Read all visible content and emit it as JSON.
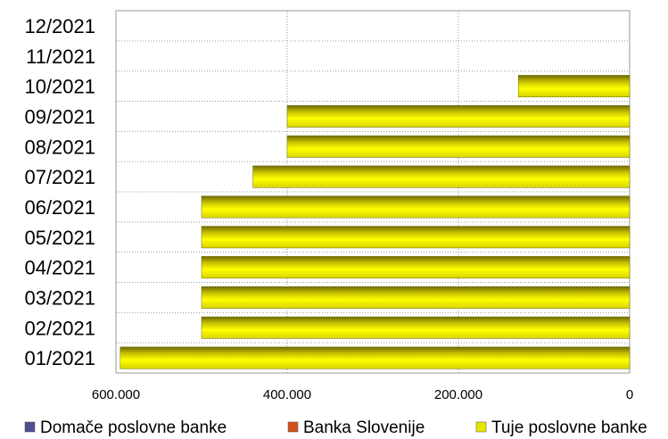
{
  "chart_data": {
    "type": "bar",
    "orientation": "horizontal",
    "x_axis_reversed": true,
    "categories": [
      "01/2021",
      "02/2021",
      "03/2021",
      "04/2021",
      "05/2021",
      "06/2021",
      "07/2021",
      "08/2021",
      "09/2021",
      "10/2021",
      "11/2021",
      "12/2021"
    ],
    "series": [
      {
        "name": "Domače poslovne banke",
        "color": "#4f4f8f",
        "values": [
          0,
          0,
          0,
          0,
          0,
          0,
          0,
          0,
          0,
          0,
          0,
          0
        ]
      },
      {
        "name": "Banka Slovenije",
        "color": "#d2501e",
        "values": [
          0,
          0,
          0,
          0,
          0,
          0,
          0,
          0,
          0,
          0,
          0,
          0
        ]
      },
      {
        "name": "Tuje poslovne banke",
        "color": "#e6e600",
        "values": [
          595000,
          500000,
          500000,
          500000,
          500000,
          500000,
          440000,
          400000,
          400000,
          130000,
          0,
          0
        ]
      }
    ],
    "xlim": [
      0,
      600000
    ],
    "x_ticks": [
      600000,
      400000,
      200000,
      0
    ],
    "x_tick_labels": [
      "600.000",
      "400.000",
      "200.000",
      "0"
    ],
    "grid": true,
    "legend_position": "bottom"
  }
}
